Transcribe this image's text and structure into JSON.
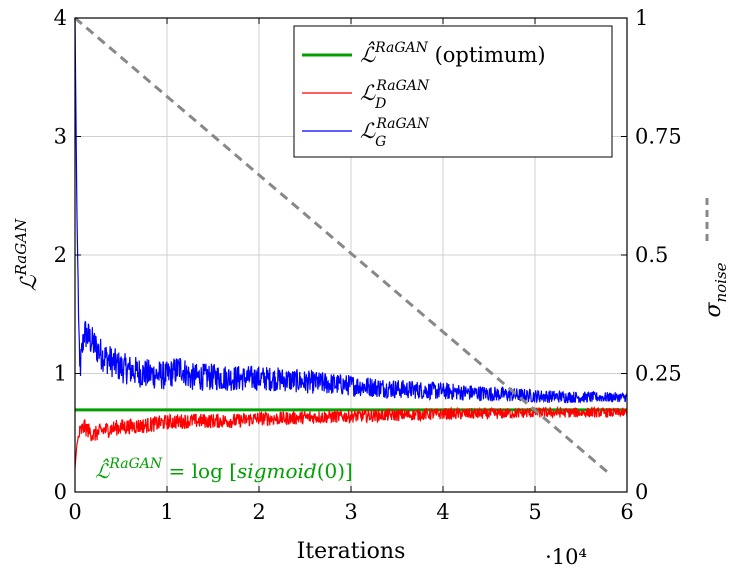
{
  "chart_data": {
    "type": "line",
    "xlabel": "Iterations",
    "x_multiplier": "·10⁴",
    "ylabel": "ℒ^RaGAN",
    "y2label": "σ_noise",
    "xlim": [
      0,
      6
    ],
    "ylim": [
      0,
      4
    ],
    "y2lim": [
      0,
      1
    ],
    "x_ticks": [
      "0",
      "1",
      "2",
      "3",
      "4",
      "5",
      "6"
    ],
    "y_ticks": [
      "0",
      "1",
      "2",
      "3",
      "4"
    ],
    "y2_ticks": [
      "0",
      "0.25",
      "0.5",
      "0.75",
      "1"
    ],
    "grid": true,
    "legend_position": "top-right",
    "optimum_value": 0.693,
    "annotation": "ℒ̂^RaGAN = log [sigmoid(0)]",
    "series": [
      {
        "name": "ℒ̂^RaGAN (optimum)",
        "color": "#00a000",
        "axis": "left",
        "x": [
          0,
          6
        ],
        "values": [
          0.693,
          0.693
        ]
      },
      {
        "name": "ℒ_D^RaGAN",
        "color": "#ff0000",
        "axis": "left",
        "x": [
          0,
          0.02,
          0.05,
          0.1,
          0.2,
          0.3,
          0.5,
          0.75,
          1.0,
          1.25,
          1.5,
          1.75,
          2.0,
          2.25,
          2.5,
          3.0,
          3.5,
          4.0,
          4.5,
          5.0,
          5.5,
          6.0
        ],
        "values": [
          0.2,
          0.4,
          0.5,
          0.55,
          0.48,
          0.52,
          0.55,
          0.56,
          0.59,
          0.6,
          0.6,
          0.6,
          0.62,
          0.62,
          0.63,
          0.64,
          0.65,
          0.66,
          0.66,
          0.67,
          0.67,
          0.67
        ]
      },
      {
        "name": "ℒ_G^RaGAN",
        "color": "#0000ff",
        "axis": "left",
        "x": [
          0,
          0.02,
          0.05,
          0.1,
          0.15,
          0.2,
          0.3,
          0.5,
          0.75,
          1.0,
          1.15,
          1.25,
          1.5,
          1.75,
          2.0,
          2.25,
          2.5,
          3.0,
          3.5,
          4.0,
          4.5,
          5.0,
          5.5,
          6.0
        ],
        "values": [
          4.0,
          2.4,
          1.0,
          1.35,
          1.3,
          1.25,
          1.15,
          1.05,
          1.0,
          0.98,
          1.05,
          0.97,
          0.97,
          0.96,
          0.96,
          0.95,
          0.93,
          0.9,
          0.87,
          0.85,
          0.83,
          0.81,
          0.8,
          0.8
        ]
      },
      {
        "name": "σ_noise",
        "color": "#888888",
        "axis": "right",
        "dashed": true,
        "x": [
          0,
          5.8
        ],
        "values": [
          1.0,
          0.04
        ]
      }
    ]
  }
}
